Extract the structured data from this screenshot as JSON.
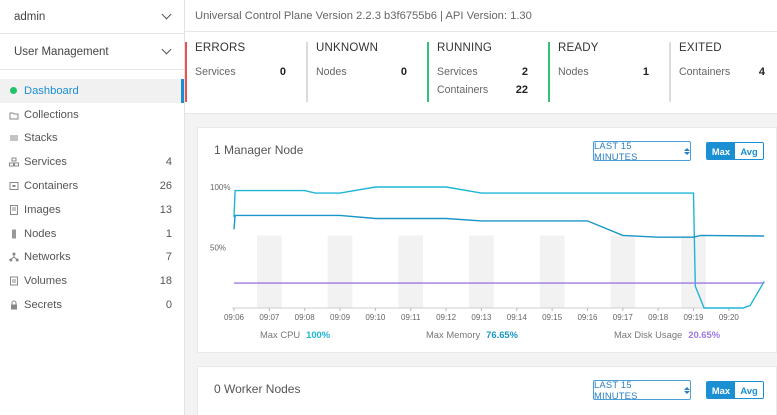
{
  "sidebar": {
    "user_select": "admin",
    "section_select": "User Management",
    "items": [
      {
        "label": "Dashboard",
        "count": "",
        "icon": "status-dot-icon"
      },
      {
        "label": "Collections",
        "count": "",
        "icon": "collections-icon"
      },
      {
        "label": "Stacks",
        "count": "",
        "icon": "stacks-icon"
      },
      {
        "label": "Services",
        "count": "4",
        "icon": "services-icon"
      },
      {
        "label": "Containers",
        "count": "26",
        "icon": "containers-icon"
      },
      {
        "label": "Images",
        "count": "13",
        "icon": "images-icon"
      },
      {
        "label": "Nodes",
        "count": "1",
        "icon": "nodes-icon"
      },
      {
        "label": "Networks",
        "count": "7",
        "icon": "networks-icon"
      },
      {
        "label": "Volumes",
        "count": "18",
        "icon": "volumes-icon"
      },
      {
        "label": "Secrets",
        "count": "0",
        "icon": "lock-icon"
      }
    ]
  },
  "header": {
    "version_text": "Universal Control Plane Version 2.2.3 b3f6755b6 | API Version: 1.30"
  },
  "status_cards": [
    {
      "title": "ERRORS",
      "rows": [
        {
          "label": "Services",
          "value": "0"
        }
      ]
    },
    {
      "title": "UNKNOWN",
      "rows": [
        {
          "label": "Nodes",
          "value": "0"
        }
      ]
    },
    {
      "title": "RUNNING",
      "rows": [
        {
          "label": "Services",
          "value": "2"
        },
        {
          "label": "Containers",
          "value": "22"
        }
      ]
    },
    {
      "title": "READY",
      "rows": [
        {
          "label": "Nodes",
          "value": "1"
        }
      ]
    },
    {
      "title": "EXITED",
      "rows": [
        {
          "label": "Containers",
          "value": "4"
        }
      ]
    }
  ],
  "manager_panel": {
    "title": "1 Manager Node",
    "range_label": "LAST 15 MINUTES",
    "toggle_max": "Max",
    "toggle_avg": "Avg"
  },
  "worker_panel": {
    "title": "0 Worker Nodes",
    "range_label": "LAST 15 MINUTES",
    "toggle_max": "Max",
    "toggle_avg": "Avg"
  },
  "colors": {
    "cpu": "#1fb6d6",
    "memory": "#1a95c8",
    "disk": "#9c7ae0",
    "accent": "#1a8fd1",
    "error": "#e55353",
    "ok": "#2fc47a"
  },
  "chart_data": {
    "type": "line",
    "y_tick_labels": [
      "100%",
      "50%"
    ],
    "ylim": [
      0,
      100
    ],
    "x": [
      "09:06",
      "09:07",
      "09:08",
      "09:09",
      "09:10",
      "09:11",
      "09:12",
      "09:13",
      "09:14",
      "09:15",
      "09:16",
      "09:17",
      "09:18",
      "09:19",
      "09:20"
    ],
    "legend": [
      {
        "label": "Max CPU",
        "value": "100%"
      },
      {
        "label": "Max Memory",
        "value": "76.65%"
      },
      {
        "label": "Max Disk Usage",
        "value": "20.65%"
      }
    ],
    "series": [
      {
        "name": "Max CPU",
        "x": [
          9.0,
          9.03,
          9.98,
          10.0,
          11.0,
          11.3,
          12.0,
          13.0,
          13.7,
          14.0,
          15.0,
          16.0,
          17.0,
          17.5,
          18.0,
          19.0,
          20.2,
          20.5,
          22.0,
          22.05,
          22.3,
          23.4,
          23.6,
          24.0
        ],
        "y": [
          75,
          97,
          97,
          97,
          97,
          95,
          95,
          100,
          100,
          100,
          100,
          95,
          95,
          95,
          95,
          95,
          95,
          95,
          95,
          18,
          0,
          0,
          2,
          22
        ]
      },
      {
        "name": "Max Memory",
        "x": [
          9.0,
          9.03,
          10.0,
          12.0,
          13.0,
          14.0,
          15.0,
          16.0,
          17.0,
          18.0,
          19.0,
          20.0,
          21.0,
          22.0,
          22.2,
          24.0
        ],
        "y": [
          65,
          76.5,
          76.5,
          76.5,
          74,
          74,
          74,
          72,
          72,
          72,
          72,
          60,
          58.5,
          58.5,
          60,
          59.5
        ]
      },
      {
        "name": "Max Disk Usage",
        "x": [
          9.0,
          24.0
        ],
        "y": [
          20.6,
          20.6
        ]
      }
    ]
  }
}
